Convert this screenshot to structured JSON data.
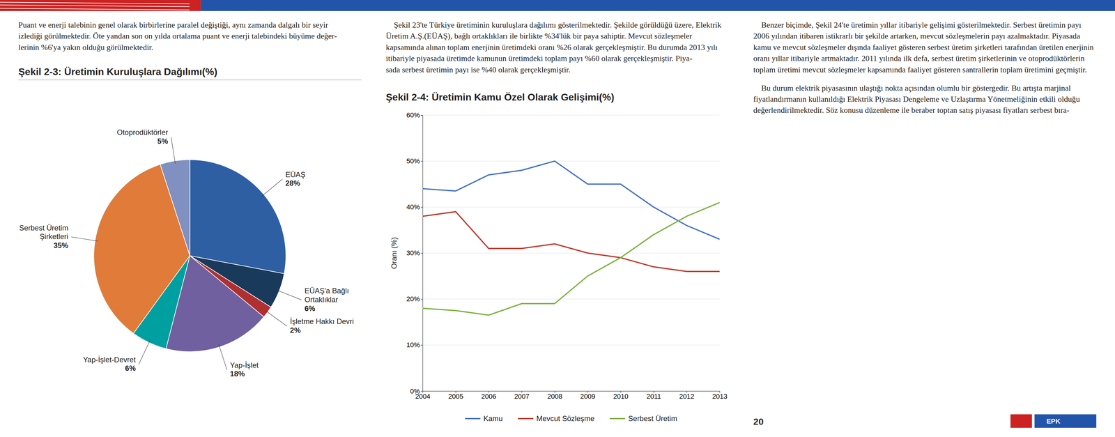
{
  "texts": {
    "header": "Puant ve enerji talebinin genel olarak birbirlerine paralel değiştiği, aynı zamanda dalgalı bir seyir\nizlediği görülmektedir. Öte yandan son on yılda ortalama puant ve enerji talebindeki büyüme değer-\nlerinin %6'ya yakın olduğu görülmektedir.",
    "paragraphs": [
      "    Şekil 23'te Türkiye üretiminin kuruluşlara dağılımı gösterilmektedir. Şekilde görüldüğü üzere, Elektrik Üretim A.Ş.(EÜAŞ), bağlı ortaklıkları ile birlikte %34'lük bir paya sahiptir. Mevcut sözleşmeler kapsamında alınan toplam enerjinin üretimdeki oranı %26 olarak gerçekleşmiştir. Bu durumda 2013 yılı itibariyle piyasada üretimde kamunun üretimdeki toplam payı %60 olarak gerçekleşmiştir. Piya-\nsada serbest üretimin payı ise %40 olarak gerçekleşmiştir.",
      "    Benzer biçimde, Şekil 24'te üretimin yıllar itibariyle gelişimi gösterilmektedir. Serbest üretimin payı 2006 yılından itibaren istikrarlı bir şekilde artarken, mevcut sözleşmelerin payı azalmaktadır. Piyasada kamu ve mevcut sözleşmeler dışında faaliyet gösteren serbest üretim şirketleri tarafından üretilen enerjinin oranı yıllar itibariyle artmaktadır. 2011 yılında ilk defa, serbest üretim şirketlerinin ve otoprodüktörlerin toplam üretimi mevcut sözleşmeler kapsamında faaliyet gösteren santrallerin toplam üretimini geçmiştir.",
      "    Bu durum elektrik piyasasının ulaştığı nokta açısından olumlu bir göstergedir. Bu artışta marjinal fiyatlandırmanın kullanıldığı Elektrik Piyasası Dengeleme ve Uzlaştırma Yönetmeliğinin etkili olduğu değerlendirilmektedir. Söz konusu düzenleme ile beraber toptan satış piyasası fiyatları serbest bıra-"
    ],
    "page_number": "20",
    "logo": "EPK"
  },
  "chart_data": [
    {
      "type": "pie",
      "title": "Şekil 2-3: Üretimin Kuruluşlara Dağılımı(%)",
      "categories": [
        "EÜAŞ",
        "EÜAŞ'a Bağlı\nOrtaklıklar",
        "İşletme Hakkı Devri",
        "Yap-İşlet",
        "Yap-İşlet-Devret",
        "Serbest Üretim\nŞirketleri",
        "Otoprodüktörler"
      ],
      "values": [
        28,
        6,
        2,
        18,
        6,
        35,
        5
      ],
      "value_labels": [
        "28%",
        "6%",
        "2%",
        "18%",
        "6%",
        "35%",
        "5%"
      ],
      "colors": [
        "#2e5fa3",
        "#1a3a5c",
        "#b03030",
        "#7060a0",
        "#00a0a0",
        "#e07b39",
        "#8090c0"
      ],
      "data_labels": true
    },
    {
      "type": "line",
      "title": "Şekil 2-4: Üretimin Kamu Özel Olarak Gelişimi(%)",
      "x": [
        2004,
        2005,
        2006,
        2007,
        2008,
        2009,
        2010,
        2011,
        2012,
        2013
      ],
      "xlim": [
        2004,
        2013
      ],
      "xticks": [
        2004,
        2005,
        2006,
        2007,
        2008,
        2009,
        2010,
        2011,
        2012,
        2013
      ],
      "ylim": [
        0,
        60
      ],
      "yticks": [
        {
          "value": 0,
          "label": "0%"
        },
        {
          "value": 10,
          "label": "10%"
        },
        {
          "value": 20,
          "label": "20%"
        },
        {
          "value": 30,
          "label": "30%"
        },
        {
          "value": 40,
          "label": "40%"
        },
        {
          "value": 50,
          "label": "50%"
        },
        {
          "value": 60,
          "label": "60%"
        }
      ],
      "ylabel": "Oranı (%)",
      "series": [
        {
          "name": "Kamu",
          "color": "#4472c4",
          "values": [
            44,
            43.5,
            47,
            48,
            50,
            45,
            45,
            40,
            36,
            33
          ]
        },
        {
          "name": "Mevcut Sözleşme",
          "color": "#c0392b",
          "values": [
            38,
            39,
            31,
            31,
            32,
            30,
            29,
            27,
            26,
            26
          ]
        },
        {
          "name": "Serbest Üretim",
          "color": "#7db13f",
          "values": [
            18,
            17.5,
            16.5,
            19,
            19,
            25,
            29,
            34,
            38,
            41
          ]
        }
      ],
      "grid": true,
      "legend": "bottom"
    }
  ]
}
